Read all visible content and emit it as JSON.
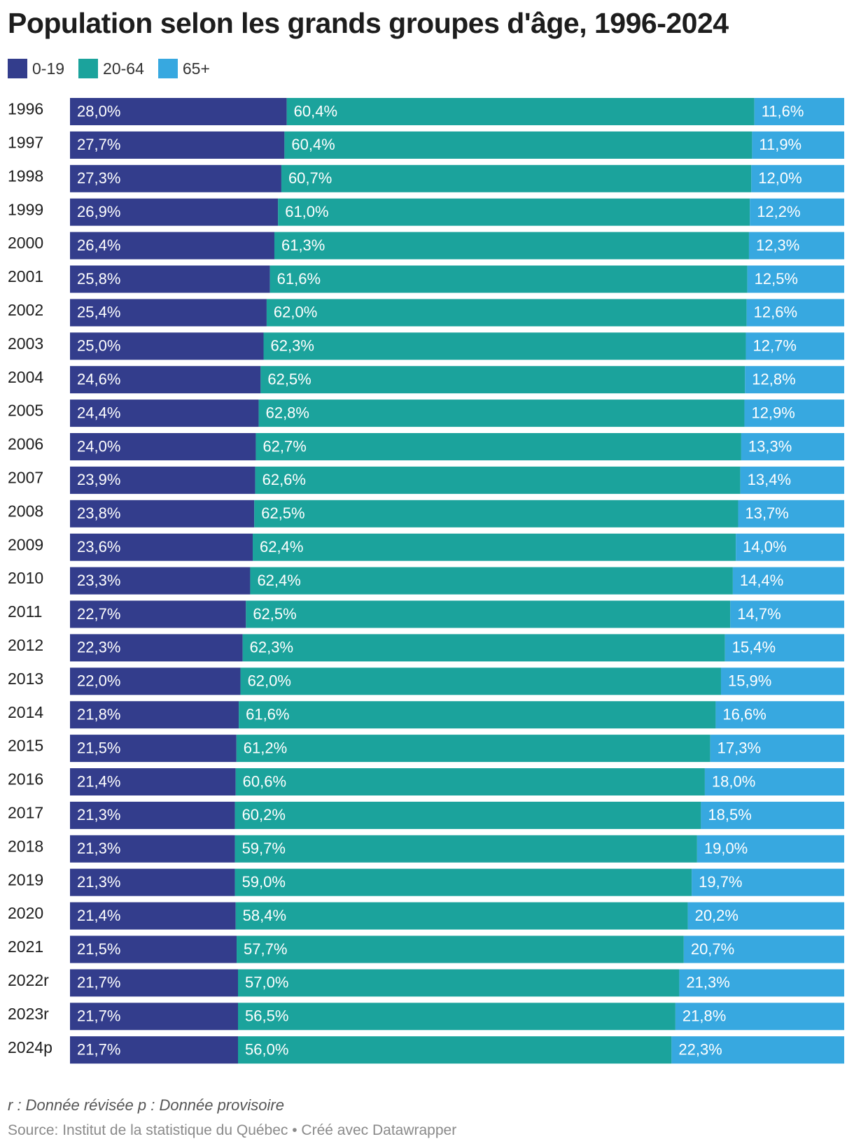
{
  "title": "Population selon les grands groupes d'âge, 1996-2024",
  "footnote": "r : Donnée révisée p : Donnée provisoire",
  "source": "Source: Institut de la statistique du Québec • Créé avec Datawrapper",
  "colors": {
    "0-19": "#333d8c",
    "20-64": "#1ba39c",
    "65+": "#37a8e0"
  },
  "legend": [
    {
      "label": "0-19",
      "color": "#333d8c"
    },
    {
      "label": "20-64",
      "color": "#1ba39c"
    },
    {
      "label": "65+",
      "color": "#37a8e0"
    }
  ],
  "chart_data": {
    "type": "bar",
    "orientation": "horizontal",
    "stacked": true,
    "categories": [
      "1996",
      "1997",
      "1998",
      "1999",
      "2000",
      "2001",
      "2002",
      "2003",
      "2004",
      "2005",
      "2006",
      "2007",
      "2008",
      "2009",
      "2010",
      "2011",
      "2012",
      "2013",
      "2014",
      "2015",
      "2016",
      "2017",
      "2018",
      "2019",
      "2020",
      "2021",
      "2022r",
      "2023r",
      "2024p"
    ],
    "series": [
      {
        "name": "0-19",
        "values": [
          28.0,
          27.7,
          27.3,
          26.9,
          26.4,
          25.8,
          25.4,
          25.0,
          24.6,
          24.4,
          24.0,
          23.9,
          23.8,
          23.6,
          23.3,
          22.7,
          22.3,
          22.0,
          21.8,
          21.5,
          21.4,
          21.3,
          21.3,
          21.3,
          21.4,
          21.5,
          21.7,
          21.7,
          21.7
        ]
      },
      {
        "name": "20-64",
        "values": [
          60.4,
          60.4,
          60.7,
          61.0,
          61.3,
          61.6,
          62.0,
          62.3,
          62.5,
          62.8,
          62.7,
          62.6,
          62.5,
          62.4,
          62.4,
          62.5,
          62.3,
          62.0,
          61.6,
          61.2,
          60.6,
          60.2,
          59.7,
          59.0,
          58.4,
          57.7,
          57.0,
          56.5,
          56.0
        ]
      },
      {
        "name": "65+",
        "values": [
          11.6,
          11.9,
          12.0,
          12.2,
          12.3,
          12.5,
          12.6,
          12.7,
          12.8,
          12.9,
          13.3,
          13.4,
          13.7,
          14.0,
          14.4,
          14.7,
          15.4,
          15.9,
          16.6,
          17.3,
          18.0,
          18.5,
          19.0,
          19.7,
          20.2,
          20.7,
          21.3,
          21.8,
          22.3
        ]
      }
    ],
    "value_labels": {
      "0-19": [
        "28,0%",
        "27,7%",
        "27,3%",
        "26,9%",
        "26,4%",
        "25,8%",
        "25,4%",
        "25,0%",
        "24,6%",
        "24,4%",
        "24,0%",
        "23,9%",
        "23,8%",
        "23,6%",
        "23,3%",
        "22,7%",
        "22,3%",
        "22,0%",
        "21,8%",
        "21,5%",
        "21,4%",
        "21,3%",
        "21,3%",
        "21,3%",
        "21,4%",
        "21,5%",
        "21,7%",
        "21,7%",
        "21,7%"
      ],
      "20-64": [
        "60,4%",
        "60,4%",
        "60,7%",
        "61,0%",
        "61,3%",
        "61,6%",
        "62,0%",
        "62,3%",
        "62,5%",
        "62,8%",
        "62,7%",
        "62,6%",
        "62,5%",
        "62,4%",
        "62,4%",
        "62,5%",
        "62,3%",
        "62,0%",
        "61,6%",
        "61,2%",
        "60,6%",
        "60,2%",
        "59,7%",
        "59,0%",
        "58,4%",
        "57,7%",
        "57,0%",
        "56,5%",
        "56,0%"
      ],
      "65+": [
        "11,6%",
        "11,9%",
        "12,0%",
        "12,2%",
        "12,3%",
        "12,5%",
        "12,6%",
        "12,7%",
        "12,8%",
        "12,9%",
        "13,3%",
        "13,4%",
        "13,7%",
        "14,0%",
        "14,4%",
        "14,7%",
        "15,4%",
        "15,9%",
        "16,6%",
        "17,3%",
        "18,0%",
        "18,5%",
        "19,0%",
        "19,7%",
        "20,2%",
        "20,7%",
        "21,3%",
        "21,8%",
        "22,3%"
      ]
    },
    "xlim": [
      0,
      100
    ],
    "grid": false,
    "legend_position": "top-left"
  }
}
